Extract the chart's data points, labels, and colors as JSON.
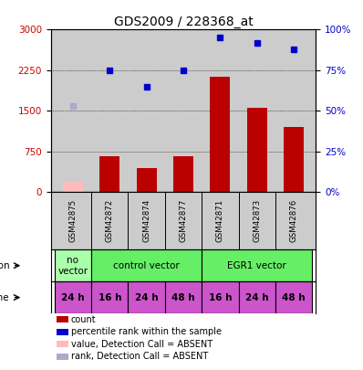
{
  "title": "GDS2009 / 228368_at",
  "samples": [
    "GSM42875",
    "GSM42872",
    "GSM42874",
    "GSM42877",
    "GSM42871",
    "GSM42873",
    "GSM42876"
  ],
  "bar_values": [
    180,
    660,
    430,
    660,
    2130,
    1560,
    1200
  ],
  "bar_absent": [
    true,
    false,
    false,
    false,
    false,
    false,
    false
  ],
  "rank_values": [
    53,
    75,
    65,
    75,
    95,
    92,
    88
  ],
  "rank_absent": [
    true,
    false,
    false,
    false,
    false,
    false,
    false
  ],
  "bar_color": "#bb0000",
  "bar_absent_color": "#ffbbbb",
  "rank_color": "#0000cc",
  "rank_absent_color": "#aaaacc",
  "ylim_left": [
    0,
    3000
  ],
  "ylim_right": [
    0,
    100
  ],
  "yticks_left": [
    0,
    750,
    1500,
    2250,
    3000
  ],
  "yticks_right": [
    0,
    25,
    50,
    75,
    100
  ],
  "yticklabels_left": [
    "0",
    "750",
    "1500",
    "2250",
    "3000"
  ],
  "yticklabels_right": [
    "0%",
    "25%",
    "50%",
    "75%",
    "100%"
  ],
  "time_labels": [
    "24 h",
    "16 h",
    "24 h",
    "48 h",
    "16 h",
    "24 h",
    "48 h"
  ],
  "time_color": "#cc55cc",
  "infection_data": [
    {
      "start": 0,
      "end": 1,
      "label": "no\nvector",
      "color": "#aaffaa"
    },
    {
      "start": 1,
      "end": 4,
      "label": "control vector",
      "color": "#66ee66"
    },
    {
      "start": 4,
      "end": 7,
      "label": "EGR1 vector",
      "color": "#66ee66"
    }
  ],
  "legend_items": [
    {
      "color": "#bb0000",
      "label": "count"
    },
    {
      "color": "#0000cc",
      "label": "percentile rank within the sample"
    },
    {
      "color": "#ffbbbb",
      "label": "value, Detection Call = ABSENT"
    },
    {
      "color": "#aaaacc",
      "label": "rank, Detection Call = ABSENT"
    }
  ],
  "background_color": "#ffffff",
  "plot_bg": "#cccccc",
  "title_fontsize": 10
}
